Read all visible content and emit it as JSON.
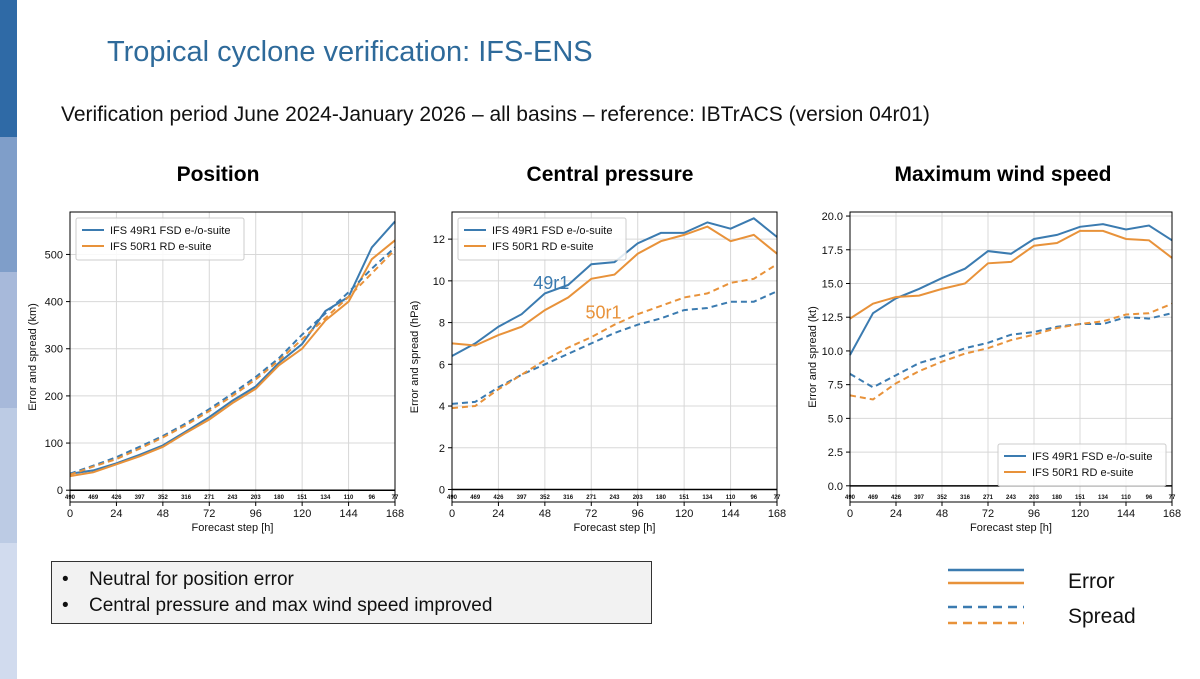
{
  "slide": {
    "title": "Tropical cyclone verification: IFS-ENS",
    "subtitle": "Verification period June 2024-January 2026 – all basins – reference: IBTrACS (version 04r01)"
  },
  "colors": {
    "blue": "#3b7bb0",
    "orange": "#e8923a",
    "sidebar": [
      "#2f6aa6",
      "#7f9ec9",
      "#a7b9da",
      "#bccbe4",
      "#d1dbee"
    ]
  },
  "notes": {
    "items": [
      "Neutral for position error",
      "Central pressure and max wind speed improved"
    ]
  },
  "key_legend": {
    "error_label": "Error",
    "spread_label": "Spread"
  },
  "chart_data": [
    {
      "type": "line",
      "title": "Position",
      "xlabel": "Forecast step [h]",
      "ylabel": "Error and spread (km)",
      "x": [
        0,
        12,
        24,
        36,
        48,
        60,
        72,
        84,
        96,
        108,
        120,
        132,
        144,
        156,
        168
      ],
      "counts": [
        "490",
        "469",
        "426",
        "397",
        "352",
        "316",
        "271",
        "243",
        "203",
        "180",
        "151",
        "134",
        "110",
        "96",
        "77"
      ],
      "xticks": [
        0,
        24,
        48,
        72,
        96,
        120,
        144,
        168
      ],
      "yticks": [
        0,
        100,
        200,
        300,
        400,
        500
      ],
      "xlim": [
        0,
        168
      ],
      "ylim": [
        -25,
        590
      ],
      "legend": [
        "IFS 49R1 FSD e-/o-suite",
        "IFS 50R1 RD e-suite"
      ],
      "legend_position": "top-left",
      "series": [
        {
          "name": "IFS 49R1 FSD e-/o-suite",
          "kind": "error",
          "color": "blue",
          "values": [
            35,
            42,
            57,
            75,
            95,
            125,
            155,
            190,
            220,
            270,
            310,
            380,
            410,
            515,
            570
          ]
        },
        {
          "name": "IFS 50R1 RD e-suite",
          "kind": "error",
          "color": "orange",
          "values": [
            30,
            38,
            55,
            72,
            92,
            122,
            150,
            185,
            215,
            265,
            300,
            360,
            400,
            490,
            530
          ]
        },
        {
          "name": "IFS 49R1 FSD e-/o-suite",
          "kind": "spread",
          "color": "blue",
          "values": [
            35,
            52,
            70,
            92,
            115,
            142,
            172,
            205,
            240,
            280,
            330,
            375,
            420,
            470,
            515
          ]
        },
        {
          "name": "IFS 50R1 RD e-suite",
          "kind": "spread",
          "color": "orange",
          "values": [
            33,
            50,
            66,
            88,
            112,
            138,
            168,
            200,
            235,
            275,
            320,
            365,
            410,
            460,
            510
          ]
        }
      ]
    },
    {
      "type": "line",
      "title": "Central pressure",
      "xlabel": "Forecast step [h]",
      "ylabel": "Error and spread (hPa)",
      "x": [
        0,
        12,
        24,
        36,
        48,
        60,
        72,
        84,
        96,
        108,
        120,
        132,
        144,
        156,
        168
      ],
      "counts": [
        "490",
        "469",
        "426",
        "397",
        "352",
        "316",
        "271",
        "243",
        "203",
        "180",
        "151",
        "134",
        "110",
        "96",
        "77"
      ],
      "xticks": [
        0,
        24,
        48,
        72,
        96,
        120,
        144,
        168
      ],
      "yticks": [
        0,
        2,
        4,
        6,
        8,
        10,
        12
      ],
      "xlim": [
        0,
        168
      ],
      "ylim": [
        -0.6,
        13.3
      ],
      "legend": [
        "IFS 49R1 FSD e-/o-suite",
        "IFS 50R1 RD e-suite"
      ],
      "legend_position": "top-left",
      "annotations": [
        {
          "text": "49r1",
          "color": "blue",
          "x": 42,
          "y": 9.6
        },
        {
          "text": "50r1",
          "color": "orange",
          "x": 69,
          "y": 8.2
        }
      ],
      "series": [
        {
          "name": "IFS 49R1 FSD e-/o-suite",
          "kind": "error",
          "color": "blue",
          "values": [
            6.4,
            7.0,
            7.8,
            8.4,
            9.4,
            9.8,
            10.8,
            10.9,
            11.8,
            12.3,
            12.3,
            12.8,
            12.5,
            13.0,
            12.1
          ]
        },
        {
          "name": "IFS 50R1 RD e-suite",
          "kind": "error",
          "color": "orange",
          "values": [
            7.0,
            6.9,
            7.4,
            7.8,
            8.6,
            9.2,
            10.1,
            10.3,
            11.3,
            11.9,
            12.2,
            12.6,
            11.9,
            12.2,
            11.3
          ]
        },
        {
          "name": "IFS 49R1 FSD e-/o-suite",
          "kind": "spread",
          "color": "blue",
          "values": [
            4.1,
            4.2,
            4.9,
            5.5,
            6.0,
            6.5,
            7.0,
            7.5,
            7.9,
            8.2,
            8.6,
            8.7,
            9.0,
            9.0,
            9.5
          ]
        },
        {
          "name": "IFS 50R1 RD e-suite",
          "kind": "spread",
          "color": "orange",
          "values": [
            3.9,
            4.0,
            4.8,
            5.5,
            6.2,
            6.8,
            7.3,
            7.9,
            8.4,
            8.8,
            9.2,
            9.4,
            9.9,
            10.1,
            10.8
          ]
        }
      ]
    },
    {
      "type": "line",
      "title": "Maximum wind speed",
      "xlabel": "Forecast step [h]",
      "ylabel": "Error and spread (kt)",
      "x": [
        0,
        12,
        24,
        36,
        48,
        60,
        72,
        84,
        96,
        108,
        120,
        132,
        144,
        156,
        168
      ],
      "counts": [
        "490",
        "469",
        "426",
        "397",
        "352",
        "316",
        "271",
        "243",
        "203",
        "180",
        "151",
        "134",
        "110",
        "96",
        "77"
      ],
      "xticks": [
        0,
        24,
        48,
        72,
        96,
        120,
        144,
        168
      ],
      "yticks": [
        "0.0",
        "2.5",
        "5.0",
        "7.5",
        "10.0",
        "12.5",
        "15.0",
        "17.5",
        "20.0"
      ],
      "xlim": [
        0,
        168
      ],
      "ylim": [
        -1.2,
        20.3
      ],
      "legend": [
        "IFS 49R1 FSD e-/o-suite",
        "IFS 50R1 RD e-suite"
      ],
      "legend_position": "bottom-right",
      "series": [
        {
          "name": "IFS 49R1 FSD e-/o-suite",
          "kind": "error",
          "color": "blue",
          "values": [
            9.7,
            12.8,
            13.9,
            14.6,
            15.4,
            16.1,
            17.4,
            17.2,
            18.3,
            18.6,
            19.2,
            19.4,
            19.0,
            19.3,
            18.2
          ]
        },
        {
          "name": "IFS 50R1 RD e-suite",
          "kind": "error",
          "color": "orange",
          "values": [
            12.4,
            13.5,
            14.0,
            14.1,
            14.6,
            15.0,
            16.5,
            16.6,
            17.8,
            18.0,
            18.9,
            18.9,
            18.3,
            18.2,
            16.9
          ]
        },
        {
          "name": "IFS 49R1 FSD e-/o-suite",
          "kind": "spread",
          "color": "blue",
          "values": [
            8.3,
            7.3,
            8.2,
            9.1,
            9.6,
            10.2,
            10.6,
            11.2,
            11.4,
            11.8,
            12.0,
            12.0,
            12.5,
            12.4,
            12.8
          ]
        },
        {
          "name": "IFS 50R1 RD e-suite",
          "kind": "spread",
          "color": "orange",
          "values": [
            6.7,
            6.4,
            7.6,
            8.5,
            9.2,
            9.8,
            10.2,
            10.8,
            11.2,
            11.7,
            12.0,
            12.2,
            12.7,
            12.8,
            13.5
          ]
        }
      ]
    }
  ]
}
